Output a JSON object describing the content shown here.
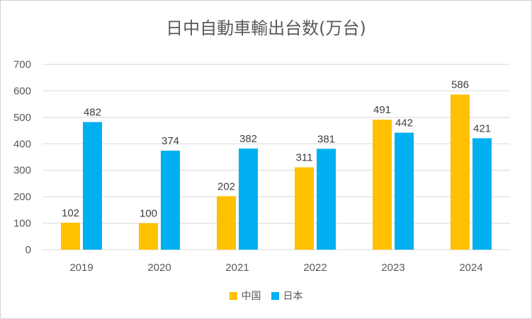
{
  "chart_data": {
    "type": "bar",
    "title": "日中自動車輸出台数(万台)",
    "categories": [
      "2019",
      "2020",
      "2021",
      "2022",
      "2023",
      "2024"
    ],
    "series": [
      {
        "name": "中国",
        "color": "#FFC000",
        "values": [
          102,
          100,
          202,
          311,
          491,
          586
        ]
      },
      {
        "name": "日本",
        "color": "#00B0F0",
        "values": [
          482,
          374,
          382,
          381,
          442,
          421
        ]
      }
    ],
    "yticks": [
      "0",
      "100",
      "200",
      "300",
      "400",
      "500",
      "600",
      "700"
    ],
    "ylim": [
      0,
      700
    ],
    "grid": true,
    "legend_position": "bottom",
    "xlabel": "",
    "ylabel": ""
  }
}
